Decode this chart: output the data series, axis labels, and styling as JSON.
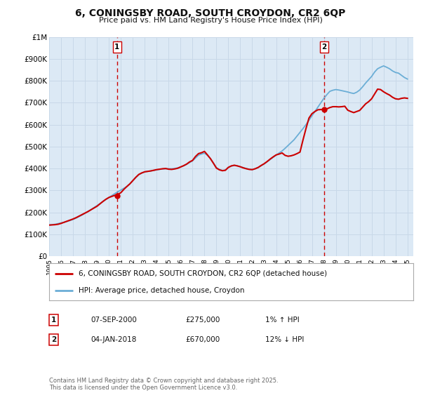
{
  "title": "6, CONINGSBY ROAD, SOUTH CROYDON, CR2 6QP",
  "subtitle": "Price paid vs. HM Land Registry's House Price Index (HPI)",
  "background_color": "#ffffff",
  "plot_bg_color": "#dce9f5",
  "grid_color": "#c8d8e8",
  "line1_color": "#cc0000",
  "line2_color": "#6baed6",
  "marker_color": "#cc0000",
  "vline_color": "#cc0000",
  "ylim": [
    0,
    1000000
  ],
  "ytick_labels": [
    "£0",
    "£100K",
    "£200K",
    "£300K",
    "£400K",
    "£500K",
    "£600K",
    "£700K",
    "£800K",
    "£900K",
    "£1M"
  ],
  "ytick_values": [
    0,
    100000,
    200000,
    300000,
    400000,
    500000,
    600000,
    700000,
    800000,
    900000,
    1000000
  ],
  "xmin": 1995.0,
  "xmax": 2025.5,
  "annotation1": {
    "label": "1",
    "x": 2000.68,
    "y_marker": 275000,
    "vline_x": 2000.68
  },
  "annotation2": {
    "label": "2",
    "x": 2018.01,
    "y_marker": 670000,
    "vline_x": 2018.01
  },
  "legend_line1": "6, CONINGSBY ROAD, SOUTH CROYDON, CR2 6QP (detached house)",
  "legend_line2": "HPI: Average price, detached house, Croydon",
  "table_entries": [
    {
      "num": "1",
      "date": "07-SEP-2000",
      "price": "£275,000",
      "hpi": "1% ↑ HPI"
    },
    {
      "num": "2",
      "date": "04-JAN-2018",
      "price": "£670,000",
      "hpi": "12% ↓ HPI"
    }
  ],
  "footer": "Contains HM Land Registry data © Crown copyright and database right 2025.\nThis data is licensed under the Open Government Licence v3.0.",
  "hpi_line": {
    "x": [
      1995.0,
      1995.25,
      1995.5,
      1995.75,
      1996.0,
      1996.25,
      1996.5,
      1996.75,
      1997.0,
      1997.25,
      1997.5,
      1997.75,
      1998.0,
      1998.25,
      1998.5,
      1998.75,
      1999.0,
      1999.25,
      1999.5,
      1999.75,
      2000.0,
      2000.25,
      2000.5,
      2000.75,
      2001.0,
      2001.25,
      2001.5,
      2001.75,
      2002.0,
      2002.25,
      2002.5,
      2002.75,
      2003.0,
      2003.25,
      2003.5,
      2003.75,
      2004.0,
      2004.25,
      2004.5,
      2004.75,
      2005.0,
      2005.25,
      2005.5,
      2005.75,
      2006.0,
      2006.25,
      2006.5,
      2006.75,
      2007.0,
      2007.25,
      2007.5,
      2007.75,
      2008.0,
      2008.25,
      2008.5,
      2008.75,
      2009.0,
      2009.25,
      2009.5,
      2009.75,
      2010.0,
      2010.25,
      2010.5,
      2010.75,
      2011.0,
      2011.25,
      2011.5,
      2011.75,
      2012.0,
      2012.25,
      2012.5,
      2012.75,
      2013.0,
      2013.25,
      2013.5,
      2013.75,
      2014.0,
      2014.25,
      2014.5,
      2014.75,
      2015.0,
      2015.25,
      2015.5,
      2015.75,
      2016.0,
      2016.25,
      2016.5,
      2016.75,
      2017.0,
      2017.25,
      2017.5,
      2017.75,
      2018.0,
      2018.25,
      2018.5,
      2018.75,
      2019.0,
      2019.25,
      2019.5,
      2019.75,
      2020.0,
      2020.25,
      2020.5,
      2020.75,
      2021.0,
      2021.25,
      2021.5,
      2021.75,
      2022.0,
      2022.25,
      2022.5,
      2022.75,
      2023.0,
      2023.25,
      2023.5,
      2023.75,
      2024.0,
      2024.25,
      2024.5,
      2024.75,
      2025.0
    ],
    "y": [
      143000,
      144000,
      146000,
      149000,
      152000,
      155000,
      159000,
      163000,
      168000,
      174000,
      181000,
      188000,
      196000,
      204000,
      213000,
      222000,
      231000,
      240000,
      250000,
      259000,
      268000,
      277000,
      286000,
      294000,
      302000,
      310000,
      318000,
      330000,
      345000,
      359000,
      372000,
      379000,
      385000,
      387000,
      389000,
      391000,
      394000,
      396000,
      398000,
      399000,
      399000,
      399000,
      400000,
      403000,
      407000,
      412000,
      419000,
      427000,
      435000,
      448000,
      461000,
      466000,
      470000,
      460000,
      445000,
      425000,
      404000,
      396000,
      391000,
      393000,
      406000,
      411000,
      414000,
      412000,
      408000,
      404000,
      400000,
      397000,
      395000,
      399000,
      405000,
      413000,
      421000,
      431000,
      441000,
      451000,
      461000,
      471000,
      480000,
      492000,
      505000,
      518000,
      531000,
      548000,
      565000,
      582000,
      600000,
      620000,
      640000,
      660000,
      680000,
      700000,
      720000,
      737000,
      752000,
      757000,
      760000,
      758000,
      755000,
      752000,
      749000,
      745000,
      742000,
      748000,
      758000,
      773000,
      790000,
      805000,
      820000,
      840000,
      855000,
      862000,
      868000,
      862000,
      855000,
      845000,
      838000,
      835000,
      825000,
      815000,
      808000
    ]
  },
  "price_line": {
    "x": [
      1995.0,
      1995.25,
      1995.5,
      1995.75,
      1996.0,
      1996.25,
      1996.5,
      1996.75,
      1997.0,
      1997.25,
      1997.5,
      1997.75,
      1998.0,
      1998.25,
      1998.5,
      1998.75,
      1999.0,
      1999.25,
      1999.5,
      1999.75,
      2000.0,
      2000.25,
      2000.5,
      2000.68,
      2000.75,
      2001.0,
      2001.25,
      2001.5,
      2001.75,
      2002.0,
      2002.25,
      2002.5,
      2002.75,
      2003.0,
      2003.25,
      2003.5,
      2003.75,
      2004.0,
      2004.25,
      2004.5,
      2004.75,
      2005.0,
      2005.25,
      2005.5,
      2005.75,
      2006.0,
      2006.25,
      2006.5,
      2006.75,
      2007.0,
      2007.25,
      2007.5,
      2007.75,
      2008.0,
      2008.25,
      2008.5,
      2008.75,
      2009.0,
      2009.25,
      2009.5,
      2009.75,
      2010.0,
      2010.25,
      2010.5,
      2010.75,
      2011.0,
      2011.25,
      2011.5,
      2011.75,
      2012.0,
      2012.25,
      2012.5,
      2012.75,
      2013.0,
      2013.25,
      2013.5,
      2013.75,
      2014.0,
      2014.25,
      2014.5,
      2014.75,
      2015.0,
      2015.25,
      2015.5,
      2015.75,
      2016.0,
      2016.25,
      2016.5,
      2016.75,
      2017.0,
      2017.25,
      2017.5,
      2017.75,
      2018.01,
      2018.25,
      2018.5,
      2018.75,
      2019.0,
      2019.25,
      2019.5,
      2019.75,
      2020.0,
      2020.25,
      2020.5,
      2020.75,
      2021.0,
      2021.25,
      2021.5,
      2021.75,
      2022.0,
      2022.25,
      2022.5,
      2022.75,
      2023.0,
      2023.25,
      2023.5,
      2023.75,
      2024.0,
      2024.25,
      2024.5,
      2024.75,
      2025.0
    ],
    "y": [
      142000,
      143000,
      144000,
      146000,
      150000,
      155000,
      160000,
      165000,
      170000,
      176000,
      183000,
      190000,
      197000,
      204000,
      212000,
      220000,
      228000,
      239000,
      250000,
      260000,
      268000,
      273000,
      278000,
      275000,
      282000,
      290000,
      305000,
      318000,
      330000,
      345000,
      360000,
      373000,
      380000,
      385000,
      387000,
      389000,
      392000,
      395000,
      397000,
      399000,
      400000,
      397000,
      396000,
      398000,
      401000,
      407000,
      413000,
      420000,
      430000,
      437000,
      455000,
      468000,
      472000,
      478000,
      462000,
      445000,
      424000,
      402000,
      394000,
      390000,
      392000,
      405000,
      412000,
      415000,
      412000,
      408000,
      403000,
      399000,
      396000,
      395000,
      399000,
      405000,
      414000,
      422000,
      432000,
      443000,
      453000,
      462000,
      466000,
      471000,
      460000,
      456000,
      458000,
      462000,
      468000,
      475000,
      530000,
      582000,
      630000,
      650000,
      660000,
      668000,
      669000,
      670000,
      672000,
      678000,
      682000,
      682000,
      681000,
      682000,
      684000,
      666000,
      660000,
      655000,
      660000,
      665000,
      680000,
      695000,
      705000,
      718000,
      740000,
      762000,
      760000,
      750000,
      742000,
      735000,
      725000,
      718000,
      716000,
      720000,
      722000,
      720000
    ]
  }
}
